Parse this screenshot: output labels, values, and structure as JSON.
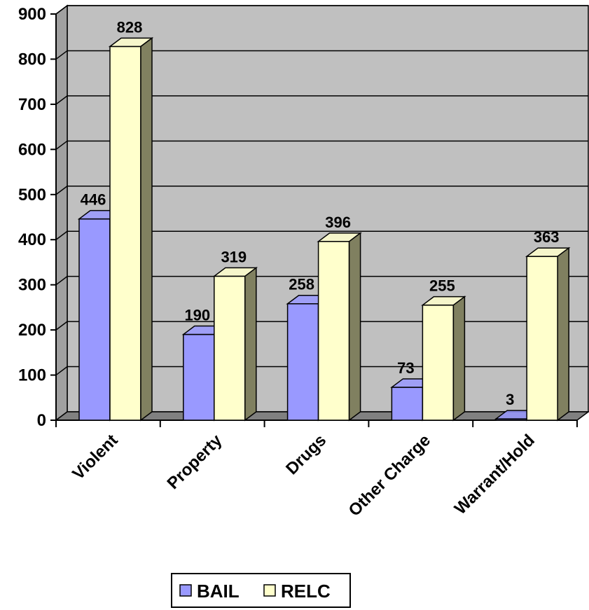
{
  "chart_data": {
    "type": "bar",
    "categories": [
      "Violent",
      "Property",
      "Drugs",
      "Other Charge",
      "Warrant/Hold"
    ],
    "series": [
      {
        "name": "BAIL",
        "values": [
          446,
          190,
          258,
          73,
          3
        ],
        "color": "#9999ff"
      },
      {
        "name": "RELC",
        "values": [
          828,
          319,
          396,
          255,
          363
        ],
        "color": "#ffffcc"
      }
    ],
    "ylim": [
      0,
      900
    ],
    "yticks": [
      0,
      100,
      200,
      300,
      400,
      500,
      600,
      700,
      800,
      900
    ],
    "grid": true,
    "legend": "bottom",
    "style": "3d-clustered-column",
    "colors": {
      "wall": "#c0c0c0",
      "floor": "#808080",
      "side": "#808060"
    }
  }
}
